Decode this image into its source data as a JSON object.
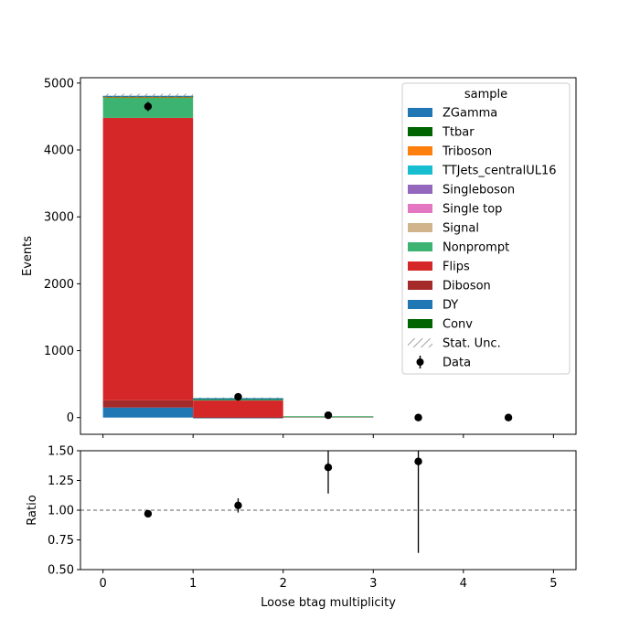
{
  "chart_data": [
    {
      "type": "bar",
      "stacked": true,
      "xlabel": "",
      "ylabel": "Events",
      "xlim": [
        -0.25,
        5.25
      ],
      "ylim": [
        -250,
        5080
      ],
      "x_ticks": [
        0,
        1,
        2,
        3,
        4,
        5
      ],
      "y_ticks": [
        0,
        1000,
        2000,
        3000,
        4000,
        5000
      ],
      "bins": [
        [
          0,
          1
        ],
        [
          1,
          2
        ],
        [
          2,
          3
        ],
        [
          3,
          4
        ],
        [
          4,
          5
        ]
      ],
      "legend_title": "sample",
      "legend_position": "top-right",
      "series": [
        {
          "name": "DY",
          "color": "#1f77b4",
          "values": [
            150,
            5,
            0,
            0,
            0
          ]
        },
        {
          "name": "Diboson",
          "color": "#a52a2a",
          "values": [
            110,
            5,
            0,
            0,
            0
          ]
        },
        {
          "name": "Conv",
          "color": "#006400",
          "values": [
            0,
            0,
            0,
            0,
            0
          ]
        },
        {
          "name": "Flips",
          "color": "#d62728",
          "values": [
            4220,
            245,
            18,
            0,
            0
          ]
        },
        {
          "name": "Nonprompt",
          "color": "#3cb371",
          "values": [
            310,
            25,
            2,
            0,
            0
          ]
        },
        {
          "name": "Signal",
          "color": "#d2b48c",
          "values": [
            0,
            0,
            0,
            0,
            0
          ]
        },
        {
          "name": "Single top",
          "color": "#e377c2",
          "values": [
            0,
            0,
            0,
            0,
            0
          ]
        },
        {
          "name": "Singleboson",
          "color": "#9467bd",
          "values": [
            0,
            0,
            0,
            0,
            0
          ]
        },
        {
          "name": "TTJets_centralUL16",
          "color": "#17becf",
          "values": [
            0,
            0,
            0,
            0,
            0
          ]
        },
        {
          "name": "Triboson",
          "color": "#ff7f0e",
          "values": [
            5,
            0,
            0,
            0,
            0
          ]
        },
        {
          "name": "Ttbar",
          "color": "#006400",
          "values": [
            10,
            5,
            0,
            0,
            0
          ]
        },
        {
          "name": "ZGamma",
          "color": "#1f77b4",
          "values": [
            5,
            5,
            0,
            0,
            0
          ]
        }
      ],
      "stat_unc": [
        [
          4790,
          4840
        ],
        [
          290,
          300
        ],
        [
          null,
          null
        ],
        [
          null,
          null
        ],
        [
          null,
          null
        ]
      ],
      "data": {
        "name": "Data",
        "x": [
          0.5,
          1.5,
          2.5,
          3.5,
          4.5
        ],
        "y": [
          4650,
          310,
          35,
          0,
          0
        ],
        "err": [
          68,
          18,
          6,
          0,
          0
        ]
      },
      "legend_items": [
        {
          "label": "ZGamma",
          "kind": "patch",
          "color": "#1f77b4"
        },
        {
          "label": "Ttbar",
          "kind": "patch",
          "color": "#006400"
        },
        {
          "label": "Triboson",
          "kind": "patch",
          "color": "#ff7f0e"
        },
        {
          "label": "TTJets_centralUL16",
          "kind": "patch",
          "color": "#17becf"
        },
        {
          "label": "Singleboson",
          "kind": "patch",
          "color": "#9467bd"
        },
        {
          "label": "Single top",
          "kind": "patch",
          "color": "#e377c2"
        },
        {
          "label": "Signal",
          "kind": "patch",
          "color": "#d2b48c"
        },
        {
          "label": "Nonprompt",
          "kind": "patch",
          "color": "#3cb371"
        },
        {
          "label": "Flips",
          "kind": "patch",
          "color": "#d62728"
        },
        {
          "label": "Diboson",
          "kind": "patch",
          "color": "#a52a2a"
        },
        {
          "label": "DY",
          "kind": "patch",
          "color": "#1f77b4"
        },
        {
          "label": "Conv",
          "kind": "patch",
          "color": "#006400"
        },
        {
          "label": "Stat. Unc.",
          "kind": "hatch",
          "color": "#888888"
        },
        {
          "label": "Data",
          "kind": "marker",
          "color": "#000000"
        }
      ]
    },
    {
      "type": "scatter",
      "xlabel": "Loose btag multiplicity",
      "ylabel": "Ratio",
      "xlim": [
        -0.25,
        5.25
      ],
      "ylim": [
        0.5,
        1.5
      ],
      "x_ticks": [
        0,
        1,
        2,
        3,
        4,
        5
      ],
      "y_ticks": [
        0.5,
        0.75,
        1.0,
        1.25,
        1.5
      ],
      "y_tick_labels": [
        "0.50",
        "0.75",
        "1.00",
        "1.25",
        "1.50"
      ],
      "reference_line": 1.0,
      "points": [
        {
          "x": 0.5,
          "y": 0.97,
          "err_lo": 0.015,
          "err_hi": 0.015
        },
        {
          "x": 1.5,
          "y": 1.04,
          "err_lo": 0.06,
          "err_hi": 0.06
        },
        {
          "x": 2.5,
          "y": 1.36,
          "err_lo": 0.22,
          "err_hi": 0.22
        },
        {
          "x": 3.5,
          "y": 1.41,
          "err_lo": 0.77,
          "err_hi": 0.77
        }
      ]
    }
  ]
}
